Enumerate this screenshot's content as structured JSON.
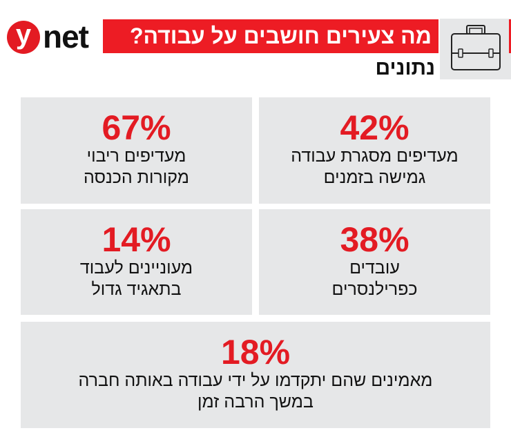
{
  "logo": {
    "letter": "y",
    "text": "net"
  },
  "header": {
    "title": "מה צעירים חושבים על עבודה?",
    "subtitle": "נתונים",
    "icon": "briefcase-icon"
  },
  "colors": {
    "accent": "#ed1c24",
    "card_bg": "#e6e7e8"
  },
  "stats": [
    {
      "value": "42%",
      "line1": "מעדיפים מסגרת עבודה",
      "line2": "גמישה בזמנים"
    },
    {
      "value": "67%",
      "line1": "מעדיפים ריבוי",
      "line2": "מקורות הכנסה"
    },
    {
      "value": "38%",
      "line1": "עובדים",
      "line2": "כפרילנסרים"
    },
    {
      "value": "14%",
      "line1": "מעוניינים לעבוד",
      "line2": "בתאגיד גדול"
    },
    {
      "value": "18%",
      "line1": "מאמינים שהם יתקדמו על ידי עבודה באותה חברה",
      "line2": "במשך הרבה זמן"
    }
  ]
}
